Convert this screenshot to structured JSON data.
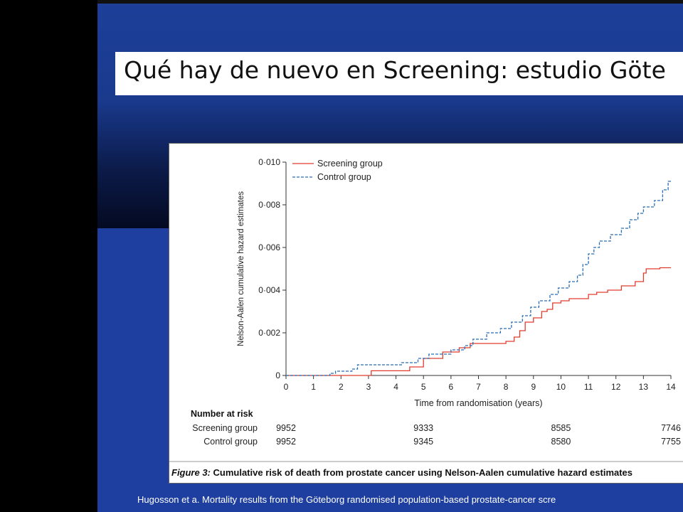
{
  "slide": {
    "title": "Qué hay de nuevo en  Screening: estudio Göte",
    "citation": "Hugosson et a. Mortality results from the Göteborg randomised population-based prostate-cancer scre",
    "citation_line2": "",
    "colors": {
      "background": "#1e3f9f",
      "title_bg": "#ffffff"
    }
  },
  "figure": {
    "caption_label": "Figure 3:",
    "caption_text": "Cumulative risk of death from prostate cancer using Nelson-Aalen cumulative hazard estimates",
    "risk_table": {
      "header": "Number at risk",
      "rows": [
        {
          "label": "Screening group",
          "values": [
            "9952",
            "9333",
            "8585",
            "7746"
          ]
        },
        {
          "label": "Control group",
          "values": [
            "9952",
            "9345",
            "8580",
            "7755"
          ]
        }
      ],
      "at_years": [
        0,
        5,
        10,
        14
      ]
    }
  },
  "chart_data": {
    "type": "line",
    "xlabel": "Time from randomisation (years)",
    "ylabel": "Nelson-Aalen cumulative hazard estimates",
    "xlim": [
      0,
      14
    ],
    "ylim": [
      0,
      0.01
    ],
    "x_ticks": [
      "0",
      "1",
      "2",
      "3",
      "4",
      "5",
      "6",
      "7",
      "8",
      "9",
      "10",
      "11",
      "12",
      "13",
      "14"
    ],
    "y_ticks": [
      "0",
      "0·002",
      "0·004",
      "0·006",
      "0·008",
      "0·010"
    ],
    "series": [
      {
        "name": "Screening group",
        "color": "#e03c2e",
        "style": "solid",
        "step": true,
        "points": [
          [
            0,
            0
          ],
          [
            3.1,
            0
          ],
          [
            3.1,
            0.00022
          ],
          [
            4.5,
            0.00022
          ],
          [
            4.5,
            0.0004
          ],
          [
            5,
            0.0004
          ],
          [
            5,
            0.0008
          ],
          [
            5.7,
            0.0008
          ],
          [
            5.7,
            0.0011
          ],
          [
            6.3,
            0.0011
          ],
          [
            6.3,
            0.0013
          ],
          [
            6.7,
            0.0013
          ],
          [
            6.7,
            0.0015
          ],
          [
            8,
            0.0015
          ],
          [
            8,
            0.0016
          ],
          [
            8.3,
            0.0016
          ],
          [
            8.3,
            0.0018
          ],
          [
            8.5,
            0.0018
          ],
          [
            8.5,
            0.0021
          ],
          [
            8.7,
            0.0021
          ],
          [
            8.7,
            0.0025
          ],
          [
            9,
            0.0025
          ],
          [
            9,
            0.0027
          ],
          [
            9.3,
            0.0027
          ],
          [
            9.3,
            0.003
          ],
          [
            9.5,
            0.003
          ],
          [
            9.5,
            0.0031
          ],
          [
            9.7,
            0.0031
          ],
          [
            9.7,
            0.0034
          ],
          [
            10,
            0.0034
          ],
          [
            10,
            0.0035
          ],
          [
            10.3,
            0.0035
          ],
          [
            10.3,
            0.0036
          ],
          [
            11,
            0.0036
          ],
          [
            11,
            0.0038
          ],
          [
            11.3,
            0.0038
          ],
          [
            11.3,
            0.0039
          ],
          [
            11.7,
            0.0039
          ],
          [
            11.7,
            0.004
          ],
          [
            12.2,
            0.004
          ],
          [
            12.2,
            0.0042
          ],
          [
            12.7,
            0.0042
          ],
          [
            12.7,
            0.0044
          ],
          [
            13,
            0.0044
          ],
          [
            13,
            0.0048
          ],
          [
            13.1,
            0.0048
          ],
          [
            13.1,
            0.005
          ],
          [
            13.6,
            0.005
          ],
          [
            13.6,
            0.00505
          ],
          [
            14,
            0.00505
          ]
        ]
      },
      {
        "name": "Control group",
        "color": "#2a6db5",
        "style": "dashed",
        "step": true,
        "points": [
          [
            0,
            0
          ],
          [
            1.6,
            0
          ],
          [
            1.6,
            0.0001
          ],
          [
            1.8,
            0.0001
          ],
          [
            1.8,
            0.0002
          ],
          [
            2.4,
            0.0002
          ],
          [
            2.4,
            0.0003
          ],
          [
            2.6,
            0.0003
          ],
          [
            2.6,
            0.0005
          ],
          [
            4.2,
            0.0005
          ],
          [
            4.2,
            0.0006
          ],
          [
            4.8,
            0.0006
          ],
          [
            4.8,
            0.0008
          ],
          [
            5.2,
            0.0008
          ],
          [
            5.2,
            0.001
          ],
          [
            6,
            0.001
          ],
          [
            6,
            0.0012
          ],
          [
            6.5,
            0.0012
          ],
          [
            6.5,
            0.0014
          ],
          [
            6.8,
            0.0014
          ],
          [
            6.8,
            0.0017
          ],
          [
            7.3,
            0.0017
          ],
          [
            7.3,
            0.002
          ],
          [
            7.8,
            0.002
          ],
          [
            7.8,
            0.0022
          ],
          [
            8.2,
            0.0022
          ],
          [
            8.2,
            0.0025
          ],
          [
            8.6,
            0.0025
          ],
          [
            8.6,
            0.0028
          ],
          [
            8.9,
            0.0028
          ],
          [
            8.9,
            0.0032
          ],
          [
            9.2,
            0.0032
          ],
          [
            9.2,
            0.0035
          ],
          [
            9.6,
            0.0035
          ],
          [
            9.6,
            0.0038
          ],
          [
            9.9,
            0.0038
          ],
          [
            9.9,
            0.0041
          ],
          [
            10.3,
            0.0041
          ],
          [
            10.3,
            0.0044
          ],
          [
            10.6,
            0.0044
          ],
          [
            10.6,
            0.0047
          ],
          [
            10.8,
            0.0047
          ],
          [
            10.8,
            0.0052
          ],
          [
            11,
            0.0052
          ],
          [
            11,
            0.0057
          ],
          [
            11.2,
            0.0057
          ],
          [
            11.2,
            0.006
          ],
          [
            11.4,
            0.006
          ],
          [
            11.4,
            0.0063
          ],
          [
            11.8,
            0.0063
          ],
          [
            11.8,
            0.0066
          ],
          [
            12.2,
            0.0066
          ],
          [
            12.2,
            0.0069
          ],
          [
            12.5,
            0.0069
          ],
          [
            12.5,
            0.0073
          ],
          [
            12.8,
            0.0073
          ],
          [
            12.8,
            0.0076
          ],
          [
            13,
            0.0076
          ],
          [
            13,
            0.0079
          ],
          [
            13.4,
            0.0079
          ],
          [
            13.4,
            0.0082
          ],
          [
            13.7,
            0.0082
          ],
          [
            13.7,
            0.0087
          ],
          [
            13.9,
            0.0087
          ],
          [
            13.9,
            0.0091
          ],
          [
            14,
            0.0091
          ]
        ]
      }
    ],
    "legend": "top-left"
  }
}
